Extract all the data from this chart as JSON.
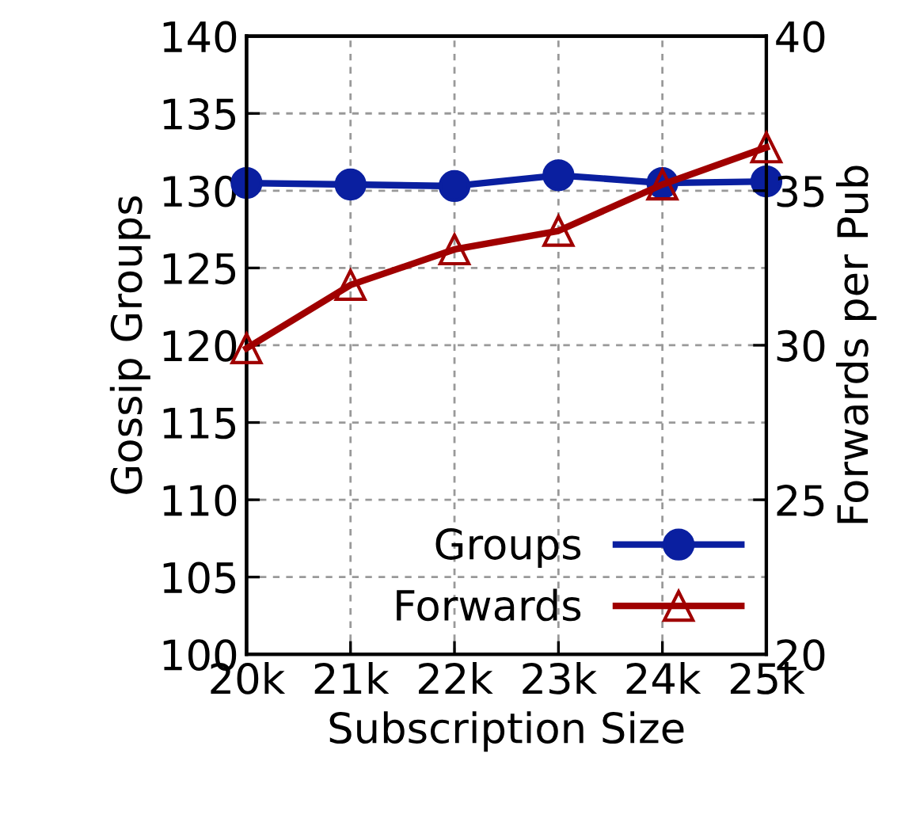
{
  "chart_data": {
    "type": "line",
    "xlabel": "Subscription Size",
    "ylabel": "Gossip Groups",
    "y2label": "Forwards per Pub",
    "x": [
      20000,
      21000,
      22000,
      23000,
      24000,
      25000
    ],
    "xlim": [
      20000,
      25000
    ],
    "xticks": [
      {
        "value": 20000,
        "label": "20k"
      },
      {
        "value": 21000,
        "label": "21k"
      },
      {
        "value": 22000,
        "label": "22k"
      },
      {
        "value": 23000,
        "label": "23k"
      },
      {
        "value": 24000,
        "label": "24k"
      },
      {
        "value": 25000,
        "label": "25k"
      }
    ],
    "ylim": [
      100,
      140
    ],
    "yticks": [
      100,
      105,
      110,
      115,
      120,
      125,
      130,
      135,
      140
    ],
    "y2lim": [
      20,
      40
    ],
    "y2ticks": [
      20,
      25,
      30,
      35,
      40
    ],
    "series": [
      {
        "name": "Groups",
        "color": "#0a1fa0",
        "marker": "circle",
        "values": [
          130.5,
          130.4,
          130.3,
          131.0,
          130.5,
          130.6
        ]
      },
      {
        "name": "Forwards",
        "color": "#a00000",
        "marker": "triangle",
        "axis": "y2",
        "values": [
          29.9,
          31.95,
          33.1,
          33.7,
          35.2,
          36.4
        ]
      }
    ],
    "grid": true,
    "legend": "bottom right",
    "line_style": "solid"
  }
}
